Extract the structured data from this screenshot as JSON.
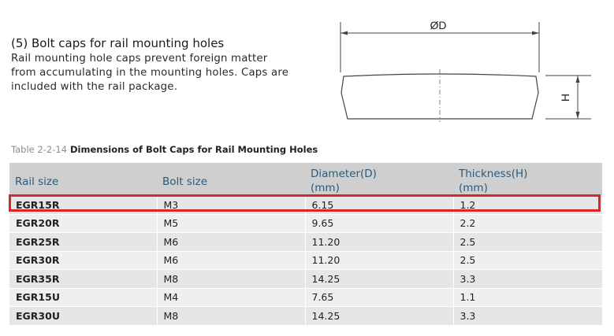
{
  "section": {
    "title": "(5) Bolt caps for rail mounting holes",
    "description": "Rail mounting hole caps prevent foreign matter from accumulating in the mounting holes. Caps are included with the rail package."
  },
  "diagram": {
    "diameter_label": "ØD",
    "height_label": "H"
  },
  "table": {
    "number": "Table 2-2-14",
    "title": "Dimensions of Bolt Caps for Rail Mounting Holes",
    "headers": {
      "rail_size": "Rail size",
      "bolt_size": "Bolt size",
      "diameter": "Diameter(D)",
      "diameter_unit": "(mm)",
      "thickness": "Thickness(H)",
      "thickness_unit": "(mm)"
    },
    "rows": [
      {
        "rail": "EGR15R",
        "bolt": "M3",
        "diameter": "6.15",
        "thickness": "1.2"
      },
      {
        "rail": "EGR20R",
        "bolt": "M5",
        "diameter": "9.65",
        "thickness": "2.2"
      },
      {
        "rail": "EGR25R",
        "bolt": "M6",
        "diameter": "11.20",
        "thickness": "2.5"
      },
      {
        "rail": "EGR30R",
        "bolt": "M6",
        "diameter": "11.20",
        "thickness": "2.5"
      },
      {
        "rail": "EGR35R",
        "bolt": "M8",
        "diameter": "14.25",
        "thickness": "3.3"
      },
      {
        "rail": "EGR15U",
        "bolt": "M4",
        "diameter": "7.65",
        "thickness": "1.1"
      },
      {
        "rail": "EGR30U",
        "bolt": "M8",
        "diameter": "14.25",
        "thickness": "3.3"
      }
    ],
    "highlight_color": "#d8262a"
  }
}
